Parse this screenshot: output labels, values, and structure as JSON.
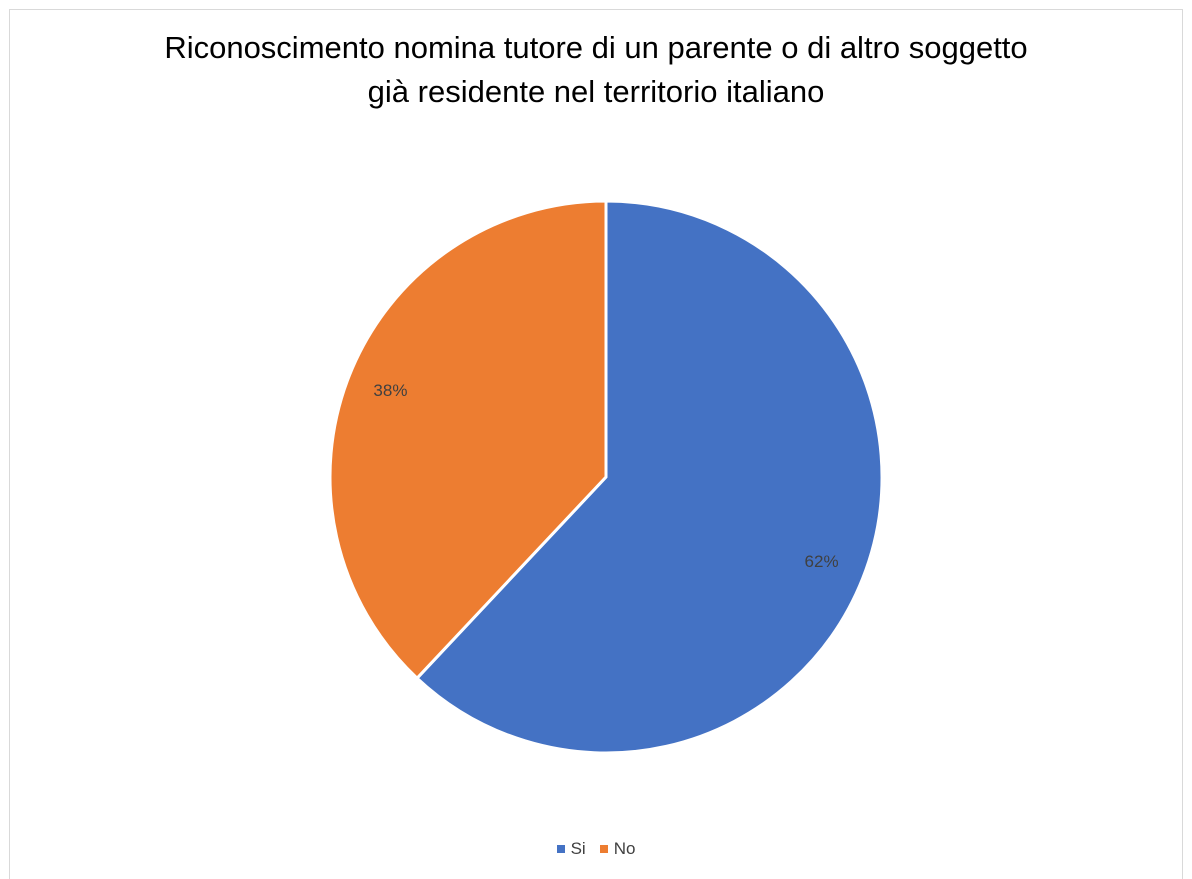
{
  "chart_data": {
    "type": "pie",
    "title_lines": [
      "Riconoscimento nomina tutore di un parente o di altro soggetto",
      "già residente nel territorio italiano"
    ],
    "slices": [
      {
        "label": "Si",
        "value": 62,
        "display": "62%",
        "color": "#4472c4"
      },
      {
        "label": "No",
        "value": 38,
        "display": "38%",
        "color": "#ed7d31"
      }
    ],
    "legend_position": "bottom"
  }
}
